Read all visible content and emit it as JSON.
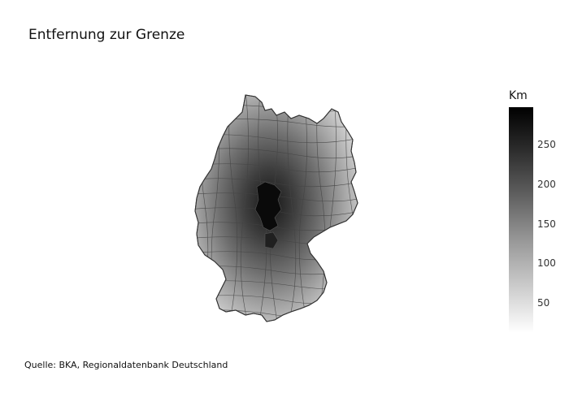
{
  "title": "Entfernung zur Grenze",
  "source": "Quelle: BKA, Regionaldatenbank Deutschland",
  "colorbar": {
    "title": "Km",
    "ticks": [
      "250",
      "200",
      "150",
      "100",
      "50"
    ],
    "min": 10,
    "max": 290
  },
  "map": {
    "region": "Germany",
    "unit_level": "Landkreise",
    "colorscale": [
      "#ffffff",
      "#000000"
    ],
    "border_color": "#444444"
  }
}
